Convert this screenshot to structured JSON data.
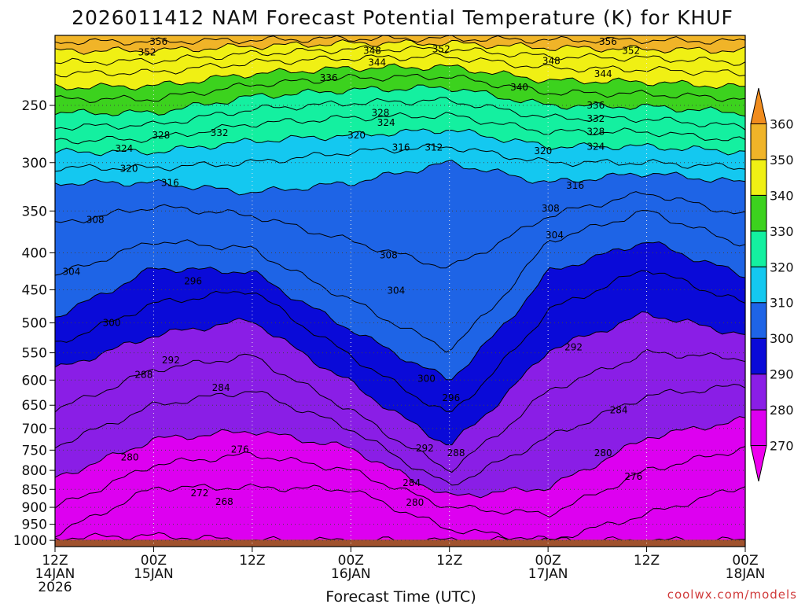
{
  "chart_data": {
    "type": "heatmap",
    "title": "2026011412 NAM Forecast Potential Temperature (K) for KHUF",
    "xlabel": "Forecast Time (UTC)",
    "ylabel": "",
    "credit": "coolwx.com/models",
    "y_scale": "log",
    "ylim": [
      1020,
      200
    ],
    "y_ticks": [
      250,
      300,
      350,
      400,
      450,
      500,
      550,
      600,
      650,
      700,
      750,
      800,
      850,
      900,
      950,
      1000
    ],
    "y_tick_labels": [
      "250",
      "300",
      "350",
      "400",
      "450",
      "500",
      "550",
      "600",
      "650",
      "700",
      "750",
      "800",
      "850",
      "900",
      "950",
      "1000"
    ],
    "x_ticks": [
      {
        "hour": 0,
        "line1": "12Z",
        "line2": "14JAN",
        "line3": "2026"
      },
      {
        "hour": 12,
        "line1": "00Z",
        "line2": "15JAN",
        "line3": ""
      },
      {
        "hour": 24,
        "line1": "12Z",
        "line2": "",
        "line3": ""
      },
      {
        "hour": 36,
        "line1": "00Z",
        "line2": "16JAN",
        "line3": ""
      },
      {
        "hour": 48,
        "line1": "12Z",
        "line2": "",
        "line3": ""
      },
      {
        "hour": 60,
        "line1": "00Z",
        "line2": "17JAN",
        "line3": ""
      },
      {
        "hour": 72,
        "line1": "12Z",
        "line2": "",
        "line3": ""
      },
      {
        "hour": 84,
        "line1": "00Z",
        "line2": "18JAN",
        "line3": ""
      }
    ],
    "xlim": [
      0,
      84
    ],
    "colorbar": {
      "labels": [
        "270",
        "280",
        "290",
        "300",
        "310",
        "320",
        "330",
        "340",
        "350",
        "360"
      ],
      "bins": [
        {
          "lo": 260,
          "hi": 270,
          "color": "#ee00ee"
        },
        {
          "lo": 270,
          "hi": 280,
          "color": "#dd00f0"
        },
        {
          "lo": 280,
          "hi": 290,
          "color": "#8a1ee6"
        },
        {
          "lo": 290,
          "hi": 300,
          "color": "#0a0ad8"
        },
        {
          "lo": 300,
          "hi": 310,
          "color": "#1e64e6"
        },
        {
          "lo": 310,
          "hi": 320,
          "color": "#14c8f0"
        },
        {
          "lo": 320,
          "hi": 330,
          "color": "#14f0a0"
        },
        {
          "lo": 330,
          "hi": 340,
          "color": "#3cd21e"
        },
        {
          "lo": 340,
          "hi": 350,
          "color": "#f0f014"
        },
        {
          "lo": 350,
          "hi": 360,
          "color": "#f0b428"
        },
        {
          "lo": 360,
          "hi": 370,
          "color": "#f08c1e"
        }
      ]
    },
    "ground_color": "#a0522d",
    "series": [
      {
        "theta": 270,
        "p": [
          992,
          985,
          1000,
          1000,
          1000,
          1000,
          1000,
          1000
        ]
      },
      {
        "theta": 272,
        "p": [
          980,
          845,
          845,
          850,
          965,
          1000,
          920,
          840
        ]
      },
      {
        "theta": 276,
        "p": [
          900,
          785,
          760,
          800,
          900,
          920,
          800,
          745
        ]
      },
      {
        "theta": 280,
        "p": [
          820,
          725,
          705,
          745,
          870,
          845,
          720,
          680
        ]
      },
      {
        "theta": 284,
        "p": [
          740,
          650,
          620,
          700,
          840,
          720,
          630,
          610
        ]
      },
      {
        "theta": 288,
        "p": [
          660,
          580,
          555,
          660,
          800,
          620,
          550,
          560
        ]
      },
      {
        "theta": 292,
        "p": [
          580,
          520,
          495,
          605,
          740,
          545,
          485,
          520
        ]
      },
      {
        "theta": 296,
        "p": [
          535,
          470,
          450,
          555,
          670,
          480,
          420,
          470
        ]
      },
      {
        "theta": 300,
        "p": [
          490,
          420,
          425,
          510,
          600,
          425,
          385,
          430
        ]
      },
      {
        "theta": 304,
        "p": [
          430,
          385,
          395,
          465,
          545,
          385,
          350,
          390
        ]
      },
      {
        "theta": 308,
        "p": [
          365,
          345,
          355,
          385,
          420,
          355,
          330,
          355
        ]
      },
      {
        "theta": 312,
        "p": [
          320,
          320,
          330,
          320,
          300,
          320,
          310,
          320
        ]
      },
      {
        "theta": 316,
        "p": [
          305,
          305,
          300,
          290,
          285,
          300,
          300,
          305
        ]
      },
      {
        "theta": 320,
        "p": [
          290,
          290,
          280,
          275,
          270,
          285,
          285,
          290
        ]
      },
      {
        "theta": 324,
        "p": [
          280,
          278,
          265,
          260,
          258,
          272,
          272,
          280
        ]
      },
      {
        "theta": 328,
        "p": [
          268,
          266,
          253,
          248,
          246,
          260,
          261,
          268
        ]
      },
      {
        "theta": 332,
        "p": [
          256,
          256,
          243,
          238,
          236,
          250,
          251,
          256
        ]
      },
      {
        "theta": 336,
        "p": [
          245,
          245,
          234,
          229,
          228,
          240,
          241,
          245
        ]
      },
      {
        "theta": 340,
        "p": [
          236,
          235,
          226,
          222,
          221,
          231,
          232,
          236
        ]
      },
      {
        "theta": 344,
        "p": [
          226,
          225,
          218,
          215,
          214,
          222,
          223,
          226
        ]
      },
      {
        "theta": 348,
        "p": [
          218,
          217,
          212,
          209,
          209,
          214,
          215,
          218
        ]
      },
      {
        "theta": 352,
        "p": [
          210,
          210,
          207,
          205,
          205,
          208,
          209,
          210
        ]
      },
      {
        "theta": 356,
        "p": [
          204,
          204,
          203,
          202,
          202,
          203,
          203,
          204
        ]
      }
    ],
    "contour_labels": [
      {
        "text": "356",
        "hour": 12.6,
        "p": 204
      },
      {
        "text": "352",
        "hour": 11.2,
        "p": 211
      },
      {
        "text": "348",
        "hour": 38.6,
        "p": 210
      },
      {
        "text": "344",
        "hour": 39.2,
        "p": 218
      },
      {
        "text": "352",
        "hour": 47.0,
        "p": 209
      },
      {
        "text": "356",
        "hour": 67.3,
        "p": 204
      },
      {
        "text": "352",
        "hour": 70.1,
        "p": 210
      },
      {
        "text": "348",
        "hour": 60.4,
        "p": 217
      },
      {
        "text": "344",
        "hour": 66.7,
        "p": 226
      },
      {
        "text": "340",
        "hour": 56.5,
        "p": 236
      },
      {
        "text": "336",
        "hour": 33.3,
        "p": 229
      },
      {
        "text": "328",
        "hour": 39.6,
        "p": 256
      },
      {
        "text": "324",
        "hour": 40.3,
        "p": 264
      },
      {
        "text": "336",
        "hour": 65.8,
        "p": 250
      },
      {
        "text": "332",
        "hour": 65.8,
        "p": 261
      },
      {
        "text": "328",
        "hour": 65.8,
        "p": 272
      },
      {
        "text": "324",
        "hour": 65.8,
        "p": 285
      },
      {
        "text": "320",
        "hour": 36.7,
        "p": 275
      },
      {
        "text": "316",
        "hour": 42.1,
        "p": 286
      },
      {
        "text": "312",
        "hour": 46.1,
        "p": 286
      },
      {
        "text": "320",
        "hour": 59.4,
        "p": 289
      },
      {
        "text": "328",
        "hour": 12.9,
        "p": 275
      },
      {
        "text": "332",
        "hour": 20.0,
        "p": 273
      },
      {
        "text": "324",
        "hour": 8.4,
        "p": 287
      },
      {
        "text": "320",
        "hour": 9.0,
        "p": 306
      },
      {
        "text": "316",
        "hour": 14.0,
        "p": 320
      },
      {
        "text": "316",
        "hour": 63.3,
        "p": 323
      },
      {
        "text": "308",
        "hour": 60.3,
        "p": 347
      },
      {
        "text": "304",
        "hour": 60.8,
        "p": 378
      },
      {
        "text": "308",
        "hour": 4.9,
        "p": 360
      },
      {
        "text": "308",
        "hour": 40.6,
        "p": 403
      },
      {
        "text": "304",
        "hour": 2.0,
        "p": 425
      },
      {
        "text": "304",
        "hour": 41.5,
        "p": 451
      },
      {
        "text": "296",
        "hour": 16.8,
        "p": 438
      },
      {
        "text": "300",
        "hour": 6.9,
        "p": 500
      },
      {
        "text": "292",
        "hour": 14.1,
        "p": 563
      },
      {
        "text": "292",
        "hour": 63.1,
        "p": 540
      },
      {
        "text": "288",
        "hour": 10.8,
        "p": 590
      },
      {
        "text": "284",
        "hour": 20.2,
        "p": 615
      },
      {
        "text": "300",
        "hour": 45.2,
        "p": 597
      },
      {
        "text": "296",
        "hour": 48.2,
        "p": 635
      },
      {
        "text": "284",
        "hour": 68.6,
        "p": 660
      },
      {
        "text": "280",
        "hour": 9.1,
        "p": 767
      },
      {
        "text": "276",
        "hour": 22.5,
        "p": 748
      },
      {
        "text": "292",
        "hour": 45.0,
        "p": 746
      },
      {
        "text": "288",
        "hour": 48.8,
        "p": 757
      },
      {
        "text": "280",
        "hour": 66.7,
        "p": 757
      },
      {
        "text": "276",
        "hour": 70.4,
        "p": 816
      },
      {
        "text": "284",
        "hour": 43.4,
        "p": 833
      },
      {
        "text": "272",
        "hour": 17.6,
        "p": 860
      },
      {
        "text": "268",
        "hour": 20.6,
        "p": 884
      },
      {
        "text": "280",
        "hour": 43.8,
        "p": 886
      }
    ]
  }
}
